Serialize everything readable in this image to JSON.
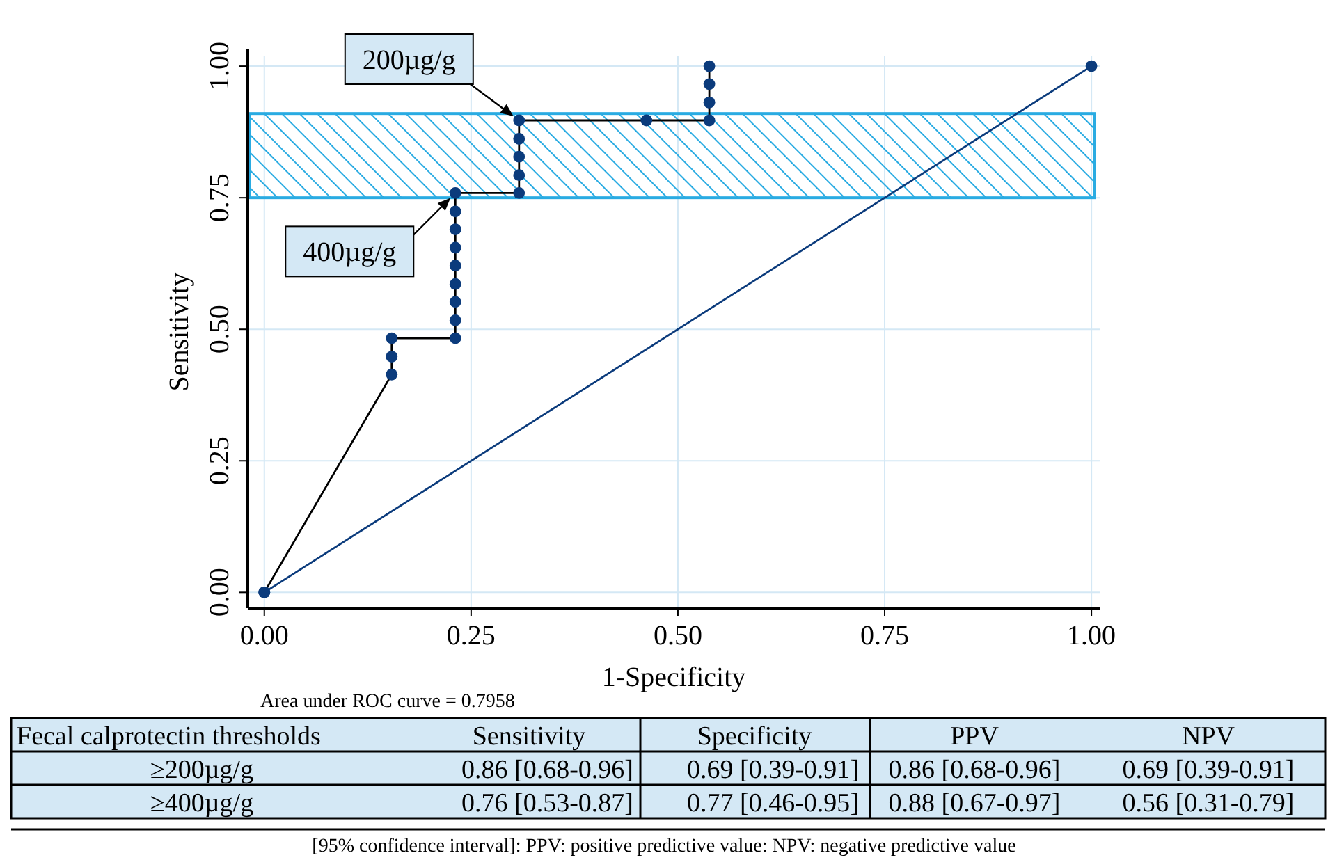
{
  "chart_data": {
    "type": "line",
    "xlabel": "1-Specificity",
    "ylabel": "Sensitivity",
    "xlim": [
      -0.02,
      1.01
    ],
    "ylim": [
      -0.03,
      1.02
    ],
    "xticks": [
      {
        "value": 0,
        "label": "0.00"
      },
      {
        "value": 0.25,
        "label": "0.25"
      },
      {
        "value": 0.5,
        "label": "0.50"
      },
      {
        "value": 0.75,
        "label": "0.75"
      },
      {
        "value": 1,
        "label": "1.00"
      }
    ],
    "yticks": [
      {
        "value": 0,
        "label": "0.00"
      },
      {
        "value": 0.25,
        "label": "0.25"
      },
      {
        "value": 0.5,
        "label": "0.50"
      },
      {
        "value": 0.75,
        "label": "0.75"
      },
      {
        "value": 1,
        "label": "1.00"
      }
    ],
    "grid": true,
    "series": [
      {
        "color": "#0b3b7c",
        "marker": "circle",
        "x": [
          0,
          0.154,
          0.154,
          0.154,
          0.231,
          0.231,
          0.231,
          0.231,
          0.231,
          0.231,
          0.231,
          0.231,
          0.231,
          0.308,
          0.308,
          0.308,
          0.308,
          0.308,
          0.462,
          0.538,
          0.538,
          0.538,
          0.538
        ],
        "values": [
          0,
          0.414,
          0.448,
          0.483,
          0.483,
          0.517,
          0.552,
          0.586,
          0.621,
          0.655,
          0.69,
          0.724,
          0.759,
          0.759,
          0.793,
          0.828,
          0.862,
          0.897,
          0.897,
          0.897,
          0.931,
          0.966,
          1
        ]
      },
      {
        "color": "#0b3b7c",
        "marker": "circle",
        "line_style": "solid",
        "x": [
          0,
          1
        ],
        "values": [
          0,
          1
        ]
      }
    ],
    "bands": [
      {
        "axis": "y",
        "from": 0.75,
        "to": 0.91,
        "color": "#29abe2"
      }
    ],
    "annotations": [
      {
        "text": "200µg/g",
        "x": 0.308,
        "y": 0.897
      },
      {
        "text": "400µg/g",
        "x": 0.231,
        "y": 0.759
      },
      "Area under ROC curve = 0.7958",
      "Fecal calprotectin thresholds",
      "Sensitivity",
      "Specificity",
      "PPV",
      "NPV",
      "≥200µg/g",
      "0.86 [0.68-0.96]",
      "0.69 [0.39-0.91]",
      "0.86 [0.68-0.96]",
      "0.69 [0.39-0.91]",
      "≥400µg/g",
      "0.76 [0.53-0.87]",
      "0.77 [0.46-0.95]",
      "0.88 [0.67-0.97]",
      "0.56 [0.31-0.79]",
      "[95% confidence interval]: PPV: positive predictive value: NPV: negative predictive value"
    ]
  }
}
